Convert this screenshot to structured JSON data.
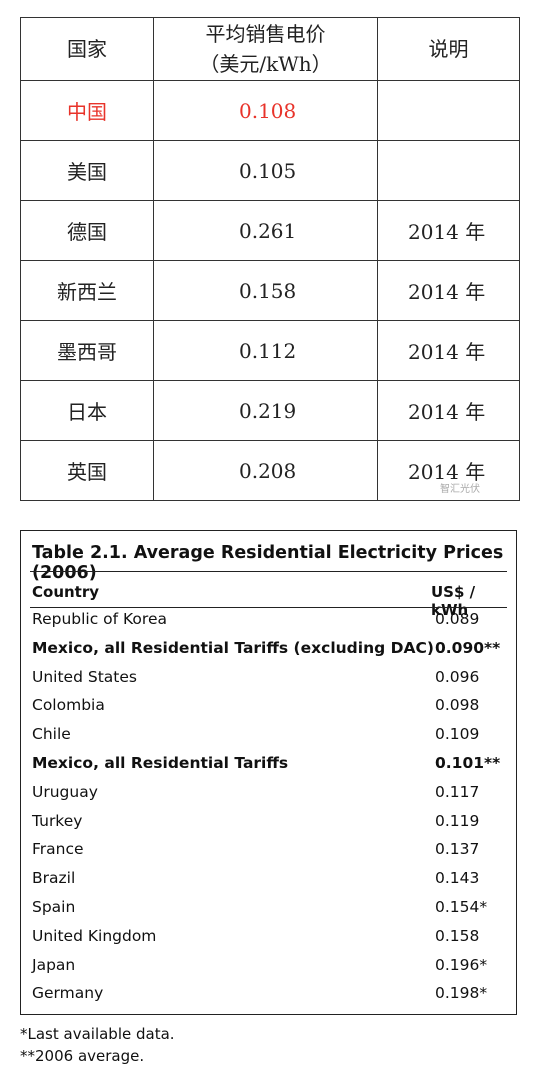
{
  "table1": {
    "header": [
      "国家",
      "平均销售电价",
      "（美元/kWh）",
      "说明"
    ],
    "rows": [
      {
        "cells": [
          "中国",
          "0.108",
          ""
        ],
        "color": "#e8332a"
      },
      {
        "cells": [
          "美国",
          "0.105",
          ""
        ]
      },
      {
        "cells": [
          "德国",
          "0.261",
          "2014 年"
        ]
      },
      {
        "cells": [
          "新西兰",
          "0.158",
          "2014 年"
        ]
      },
      {
        "cells": [
          "墨西哥",
          "0.112",
          "2014 年"
        ]
      },
      {
        "cells": [
          "日本",
          "0.219",
          "2014 年"
        ]
      },
      {
        "cells": [
          "英国",
          "0.208",
          "2014 年"
        ]
      }
    ],
    "watermark": "智汇光伏"
  },
  "table2": {
    "title": "Table 2.1.  Average Residential Electricity Prices (2006)",
    "columns": [
      "Country",
      "US$ / kWh"
    ],
    "rows": [
      {
        "cells": [
          "Republic of Korea",
          "0.089"
        ]
      },
      {
        "cells": [
          "Mexico, all Residential Tariffs (excluding DAC)",
          "0.090**"
        ],
        "bold": true
      },
      {
        "cells": [
          "United States",
          "0.096"
        ]
      },
      {
        "cells": [
          "Colombia",
          "0.098"
        ]
      },
      {
        "cells": [
          "Chile",
          "0.109"
        ]
      },
      {
        "cells": [
          "Mexico, all Residential Tariffs",
          "0.101**"
        ],
        "bold": true
      },
      {
        "cells": [
          "Uruguay",
          "0.117"
        ]
      },
      {
        "cells": [
          "Turkey",
          "0.119"
        ]
      },
      {
        "cells": [
          "France",
          "0.137"
        ]
      },
      {
        "cells": [
          "Brazil",
          "0.143"
        ]
      },
      {
        "cells": [
          "Spain",
          "0.154*"
        ]
      },
      {
        "cells": [
          "United Kingdom",
          "0.158"
        ]
      },
      {
        "cells": [
          "Japan",
          "0.196*"
        ]
      },
      {
        "cells": [
          "Germany",
          "0.198*"
        ]
      }
    ],
    "footnotes": [
      "*Last available data.",
      "**2006 average."
    ]
  }
}
